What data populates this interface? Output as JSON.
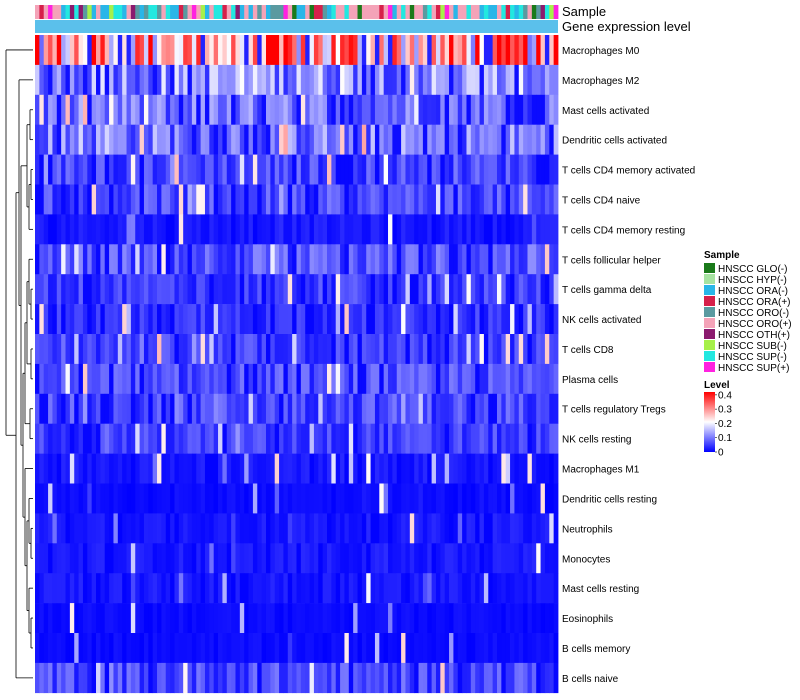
{
  "chart_data": {
    "type": "heatmap",
    "title": "",
    "annotation_tracks": [
      "Sample",
      "Gene expression level"
    ],
    "row_labels": [
      "Macrophages M0",
      "Macrophages M2",
      "Mast cells activated",
      "Dendritic cells activated",
      "T cells CD4 memory activated",
      "T cells CD4 naive",
      "T cells CD4 memory resting",
      "T cells follicular helper",
      "T cells gamma delta",
      "NK cells activated",
      "T cells CD8",
      "Plasma cells",
      "T cells regulatory  Tregs",
      "NK cells resting",
      "Macrophages M1",
      "Dendritic cells resting",
      "Neutrophils",
      "Monocytes",
      "Mast cells resting",
      "Eosinophils",
      "B cells memory",
      "B cells naive"
    ],
    "row_mean_levels": [
      0.28,
      0.12,
      0.09,
      0.1,
      0.06,
      0.06,
      0.02,
      0.07,
      0.05,
      0.04,
      0.05,
      0.06,
      0.06,
      0.05,
      0.02,
      0.01,
      0.02,
      0.02,
      0.02,
      0.01,
      0.01,
      0.06
    ],
    "sample_count": 120,
    "gene_expression_level_color": "#5bc0eb",
    "legend_sample": {
      "title": "Sample",
      "entries": [
        {
          "label": "HNSCC GLO(-)",
          "color": "#1a7a1a"
        },
        {
          "label": "HNSCC HYP(-)",
          "color": "#a6e3a1"
        },
        {
          "label": "HNSCC ORA(-)",
          "color": "#29b6e8"
        },
        {
          "label": "HNSCC ORA(+)",
          "color": "#d6204a"
        },
        {
          "label": "HNSCC ORO(-)",
          "color": "#5a9aa0"
        },
        {
          "label": "HNSCC ORO(+)",
          "color": "#f4a3b8"
        },
        {
          "label": "HNSCC OTH(+)",
          "color": "#8b1a6e"
        },
        {
          "label": "HNSCC SUB(-)",
          "color": "#a6f04a"
        },
        {
          "label": "HNSCC SUP(-)",
          "color": "#22e8e0"
        },
        {
          "label": "HNSCC SUP(+)",
          "color": "#ff22e0"
        }
      ]
    },
    "legend_level": {
      "title": "Level",
      "ticks": [
        "0.4",
        "0.3",
        "0.2",
        "0.1",
        "0"
      ],
      "range": [
        0,
        0.42
      ],
      "colors": [
        "#0000ff",
        "#ffffff",
        "#ff0000"
      ]
    }
  }
}
